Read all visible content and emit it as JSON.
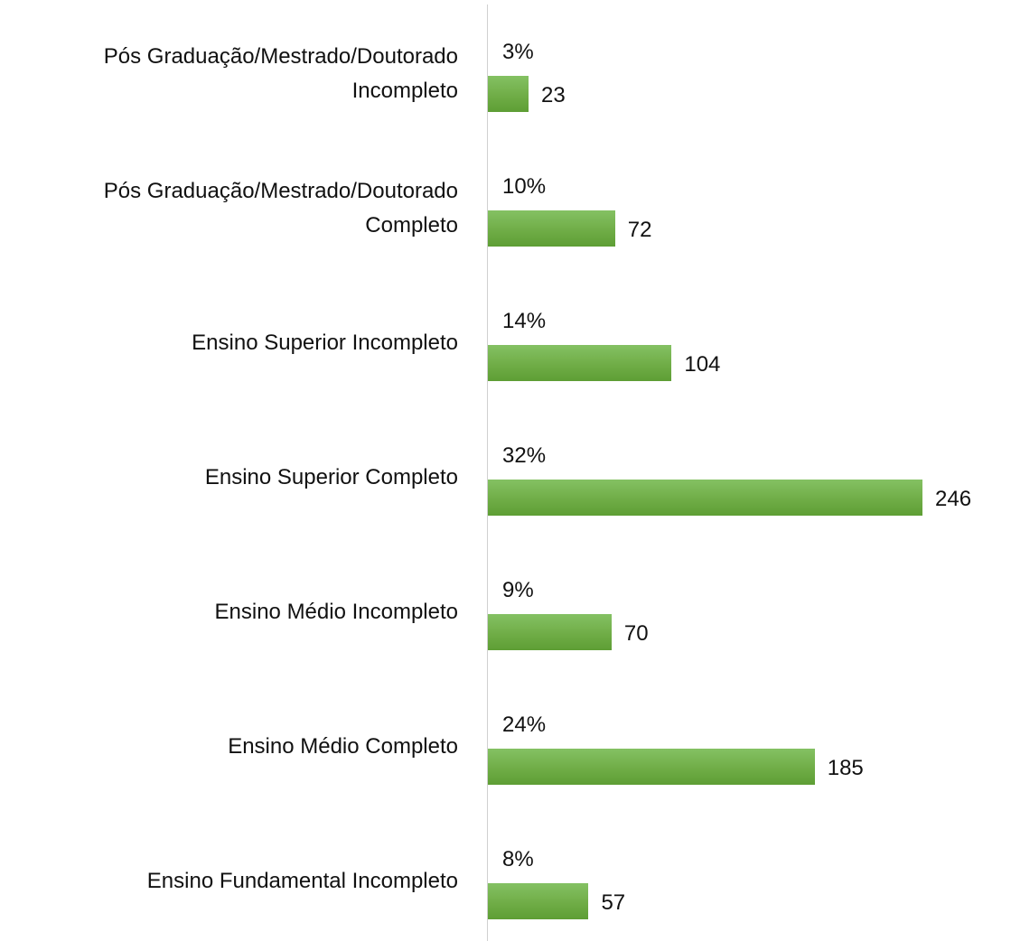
{
  "chart_data": {
    "type": "bar",
    "orientation": "horizontal",
    "categories": [
      "Pós Graduação/Mestrado/Doutorado\nIncompleto",
      "Pós Graduação/Mestrado/Doutorado\nCompleto",
      "Ensino Superior  Incompleto",
      "Ensino Superior  Completo",
      "Ensino Médio Incompleto",
      "Ensino Médio Completo",
      "Ensino Fundamental Incompleto"
    ],
    "series": [
      {
        "color": "#70ad47",
        "values": [
          23,
          72,
          104,
          246,
          70,
          185,
          57
        ]
      },
      {
        "values": [
          3,
          10,
          14,
          32,
          9,
          24,
          8
        ],
        "value_labels": [
          "3%",
          "10%",
          "14%",
          "32%",
          "9%",
          "24%",
          "8%"
        ]
      }
    ],
    "xlim": [
      0,
      246
    ]
  }
}
